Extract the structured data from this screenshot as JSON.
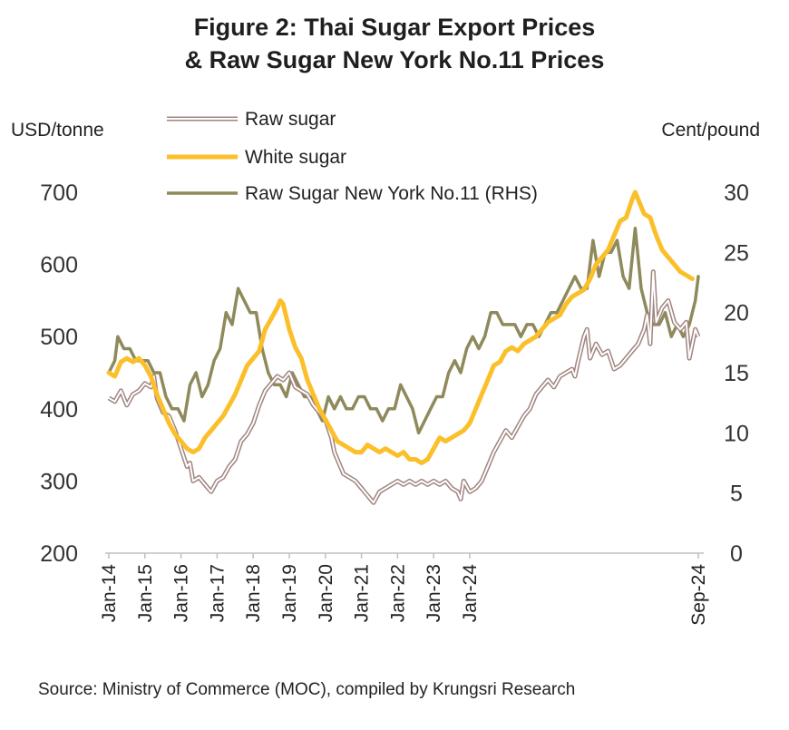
{
  "chart_data": {
    "type": "line",
    "title_line1": "Figure 2: Thai Sugar  Export Prices",
    "title_line2": "& Raw Sugar New York No.11 Prices",
    "ylabel_left": "USD/tonne",
    "ylabel_right": "Cent/pound",
    "ylim_left": [
      200,
      700
    ],
    "ylim_right": [
      0,
      30
    ],
    "yticks_left": [
      200,
      300,
      400,
      500,
      600,
      700
    ],
    "yticks_right": [
      0,
      5,
      10,
      15,
      20,
      25,
      30
    ],
    "x_tick_labels": [
      "Jan-14",
      "Jan-15",
      "Jan-16",
      "Jan-17",
      "Jan-18",
      "Jan-19",
      "Jan-20",
      "Jan-21",
      "Jan-22",
      "Jan-23",
      "Jan-24",
      "Sep-24"
    ],
    "x_start": "Jan-14",
    "x_end": "Sep-24",
    "grid": false,
    "legend_position": "top",
    "series": [
      {
        "name": "Raw sugar",
        "axis": "left",
        "color": "#a0857f",
        "style": "double",
        "values": [
          [
            0,
            415
          ],
          [
            2,
            410
          ],
          [
            4,
            425
          ],
          [
            6,
            405
          ],
          [
            8,
            420
          ],
          [
            10,
            425
          ],
          [
            12,
            435
          ],
          [
            14,
            430
          ],
          [
            15,
            445
          ],
          [
            16,
            415
          ],
          [
            18,
            395
          ],
          [
            20,
            390
          ],
          [
            22,
            370
          ],
          [
            24,
            345
          ],
          [
            26,
            320
          ],
          [
            27,
            325
          ],
          [
            28,
            300
          ],
          [
            30,
            305
          ],
          [
            32,
            295
          ],
          [
            34,
            285
          ],
          [
            36,
            300
          ],
          [
            38,
            305
          ],
          [
            40,
            320
          ],
          [
            42,
            330
          ],
          [
            44,
            355
          ],
          [
            46,
            365
          ],
          [
            48,
            380
          ],
          [
            50,
            405
          ],
          [
            52,
            425
          ],
          [
            54,
            435
          ],
          [
            56,
            445
          ],
          [
            58,
            440
          ],
          [
            60,
            450
          ],
          [
            62,
            430
          ],
          [
            64,
            425
          ],
          [
            66,
            420
          ],
          [
            68,
            405
          ],
          [
            70,
            395
          ],
          [
            72,
            385
          ],
          [
            74,
            360
          ],
          [
            75,
            340
          ],
          [
            76,
            330
          ],
          [
            78,
            310
          ],
          [
            80,
            305
          ],
          [
            82,
            300
          ],
          [
            84,
            290
          ],
          [
            86,
            280
          ],
          [
            88,
            270
          ],
          [
            90,
            285
          ],
          [
            92,
            290
          ],
          [
            94,
            295
          ],
          [
            96,
            300
          ],
          [
            98,
            295
          ],
          [
            100,
            300
          ],
          [
            102,
            295
          ],
          [
            104,
            300
          ],
          [
            106,
            295
          ],
          [
            108,
            300
          ],
          [
            110,
            295
          ],
          [
            112,
            300
          ],
          [
            114,
            290
          ],
          [
            116,
            285
          ],
          [
            117,
            275
          ],
          [
            118,
            300
          ],
          [
            120,
            285
          ],
          [
            122,
            290
          ],
          [
            124,
            300
          ],
          [
            126,
            320
          ],
          [
            128,
            340
          ],
          [
            130,
            355
          ],
          [
            132,
            370
          ],
          [
            134,
            360
          ],
          [
            136,
            375
          ],
          [
            138,
            390
          ],
          [
            140,
            400
          ],
          [
            142,
            420
          ],
          [
            144,
            430
          ],
          [
            146,
            440
          ],
          [
            148,
            430
          ],
          [
            150,
            445
          ],
          [
            152,
            450
          ],
          [
            154,
            455
          ],
          [
            155,
            445
          ],
          [
            156,
            465
          ],
          [
            158,
            500
          ],
          [
            159,
            510
          ],
          [
            160,
            470
          ],
          [
            162,
            490
          ],
          [
            164,
            475
          ],
          [
            166,
            480
          ],
          [
            168,
            455
          ],
          [
            170,
            460
          ],
          [
            172,
            470
          ],
          [
            174,
            480
          ],
          [
            176,
            490
          ],
          [
            178,
            510
          ],
          [
            179,
            530
          ],
          [
            180,
            490
          ],
          [
            181,
            590
          ],
          [
            182,
            520
          ],
          [
            184,
            540
          ],
          [
            186,
            550
          ],
          [
            188,
            520
          ],
          [
            190,
            510
          ],
          [
            192,
            520
          ],
          [
            193,
            470
          ],
          [
            195,
            510
          ],
          [
            196,
            500
          ]
        ]
      },
      {
        "name": "White sugar",
        "axis": "left",
        "color": "#fbbf2a",
        "style": "single",
        "values": [
          [
            0,
            450
          ],
          [
            2,
            445
          ],
          [
            4,
            465
          ],
          [
            6,
            470
          ],
          [
            8,
            465
          ],
          [
            10,
            470
          ],
          [
            12,
            460
          ],
          [
            14,
            445
          ],
          [
            16,
            420
          ],
          [
            18,
            400
          ],
          [
            20,
            380
          ],
          [
            22,
            365
          ],
          [
            24,
            355
          ],
          [
            26,
            345
          ],
          [
            28,
            340
          ],
          [
            30,
            345
          ],
          [
            32,
            360
          ],
          [
            34,
            370
          ],
          [
            36,
            380
          ],
          [
            38,
            390
          ],
          [
            40,
            405
          ],
          [
            42,
            420
          ],
          [
            44,
            440
          ],
          [
            46,
            460
          ],
          [
            48,
            470
          ],
          [
            50,
            480
          ],
          [
            52,
            510
          ],
          [
            54,
            525
          ],
          [
            56,
            540
          ],
          [
            57,
            550
          ],
          [
            58,
            545
          ],
          [
            60,
            510
          ],
          [
            62,
            485
          ],
          [
            64,
            470
          ],
          [
            66,
            440
          ],
          [
            68,
            420
          ],
          [
            70,
            400
          ],
          [
            72,
            385
          ],
          [
            74,
            370
          ],
          [
            76,
            355
          ],
          [
            78,
            350
          ],
          [
            80,
            345
          ],
          [
            82,
            340
          ],
          [
            84,
            340
          ],
          [
            86,
            350
          ],
          [
            88,
            345
          ],
          [
            90,
            340
          ],
          [
            92,
            345
          ],
          [
            94,
            340
          ],
          [
            96,
            335
          ],
          [
            98,
            340
          ],
          [
            100,
            330
          ],
          [
            102,
            330
          ],
          [
            104,
            325
          ],
          [
            106,
            330
          ],
          [
            108,
            345
          ],
          [
            110,
            360
          ],
          [
            112,
            355
          ],
          [
            114,
            360
          ],
          [
            116,
            365
          ],
          [
            118,
            370
          ],
          [
            120,
            380
          ],
          [
            122,
            400
          ],
          [
            124,
            420
          ],
          [
            126,
            440
          ],
          [
            128,
            460
          ],
          [
            130,
            465
          ],
          [
            132,
            480
          ],
          [
            134,
            485
          ],
          [
            136,
            480
          ],
          [
            138,
            490
          ],
          [
            140,
            495
          ],
          [
            142,
            500
          ],
          [
            144,
            510
          ],
          [
            146,
            520
          ],
          [
            148,
            525
          ],
          [
            150,
            530
          ],
          [
            152,
            545
          ],
          [
            154,
            555
          ],
          [
            156,
            560
          ],
          [
            158,
            565
          ],
          [
            160,
            580
          ],
          [
            162,
            600
          ],
          [
            164,
            610
          ],
          [
            166,
            620
          ],
          [
            168,
            640
          ],
          [
            170,
            660
          ],
          [
            172,
            665
          ],
          [
            174,
            690
          ],
          [
            175,
            700
          ],
          [
            176,
            690
          ],
          [
            178,
            670
          ],
          [
            180,
            665
          ],
          [
            182,
            640
          ],
          [
            184,
            620
          ],
          [
            186,
            610
          ],
          [
            188,
            600
          ],
          [
            190,
            590
          ],
          [
            192,
            585
          ],
          [
            194,
            580
          ]
        ]
      },
      {
        "name": "Raw Sugar New York No.11 (RHS)",
        "axis": "right",
        "color": "#8f8a5c",
        "style": "single",
        "values": [
          [
            0,
            15
          ],
          [
            2,
            16
          ],
          [
            3,
            18
          ],
          [
            5,
            17
          ],
          [
            7,
            17
          ],
          [
            9,
            16
          ],
          [
            11,
            16
          ],
          [
            13,
            16
          ],
          [
            15,
            15
          ],
          [
            17,
            15
          ],
          [
            19,
            13
          ],
          [
            21,
            12
          ],
          [
            23,
            12
          ],
          [
            25,
            11
          ],
          [
            27,
            14
          ],
          [
            29,
            15
          ],
          [
            31,
            13
          ],
          [
            33,
            14
          ],
          [
            35,
            16
          ],
          [
            37,
            17
          ],
          [
            39,
            20
          ],
          [
            41,
            19
          ],
          [
            43,
            22
          ],
          [
            45,
            21
          ],
          [
            47,
            20
          ],
          [
            49,
            20
          ],
          [
            51,
            17
          ],
          [
            53,
            15
          ],
          [
            55,
            14
          ],
          [
            57,
            14
          ],
          [
            59,
            13
          ],
          [
            61,
            15
          ],
          [
            63,
            14
          ],
          [
            65,
            13
          ],
          [
            67,
            13
          ],
          [
            69,
            12
          ],
          [
            71,
            11
          ],
          [
            73,
            13
          ],
          [
            75,
            12
          ],
          [
            77,
            13
          ],
          [
            79,
            12
          ],
          [
            81,
            12
          ],
          [
            83,
            13
          ],
          [
            85,
            13
          ],
          [
            87,
            12
          ],
          [
            89,
            12
          ],
          [
            91,
            11
          ],
          [
            93,
            12
          ],
          [
            95,
            12
          ],
          [
            97,
            14
          ],
          [
            99,
            13
          ],
          [
            101,
            12
          ],
          [
            103,
            10
          ],
          [
            105,
            11
          ],
          [
            107,
            12
          ],
          [
            109,
            13
          ],
          [
            111,
            13
          ],
          [
            113,
            15
          ],
          [
            115,
            16
          ],
          [
            117,
            15
          ],
          [
            119,
            17
          ],
          [
            121,
            18
          ],
          [
            123,
            17
          ],
          [
            125,
            18
          ],
          [
            127,
            20
          ],
          [
            129,
            20
          ],
          [
            131,
            19
          ],
          [
            133,
            19
          ],
          [
            135,
            19
          ],
          [
            137,
            18
          ],
          [
            139,
            19
          ],
          [
            141,
            19
          ],
          [
            143,
            18
          ],
          [
            145,
            19
          ],
          [
            147,
            20
          ],
          [
            149,
            20
          ],
          [
            151,
            21
          ],
          [
            153,
            22
          ],
          [
            155,
            23
          ],
          [
            157,
            22
          ],
          [
            159,
            22
          ],
          [
            161,
            26
          ],
          [
            163,
            23
          ],
          [
            165,
            25
          ],
          [
            167,
            25
          ],
          [
            169,
            26
          ],
          [
            171,
            23
          ],
          [
            173,
            22
          ],
          [
            175,
            27
          ],
          [
            177,
            22
          ],
          [
            179,
            20
          ],
          [
            181,
            19
          ],
          [
            183,
            19
          ],
          [
            185,
            20
          ],
          [
            187,
            18
          ],
          [
            189,
            19
          ],
          [
            191,
            18
          ],
          [
            193,
            19
          ],
          [
            195,
            21
          ],
          [
            196,
            23
          ]
        ]
      }
    ]
  },
  "source_text": "Source: Ministry of Commerce (MOC), compiled by Krungsri Research"
}
